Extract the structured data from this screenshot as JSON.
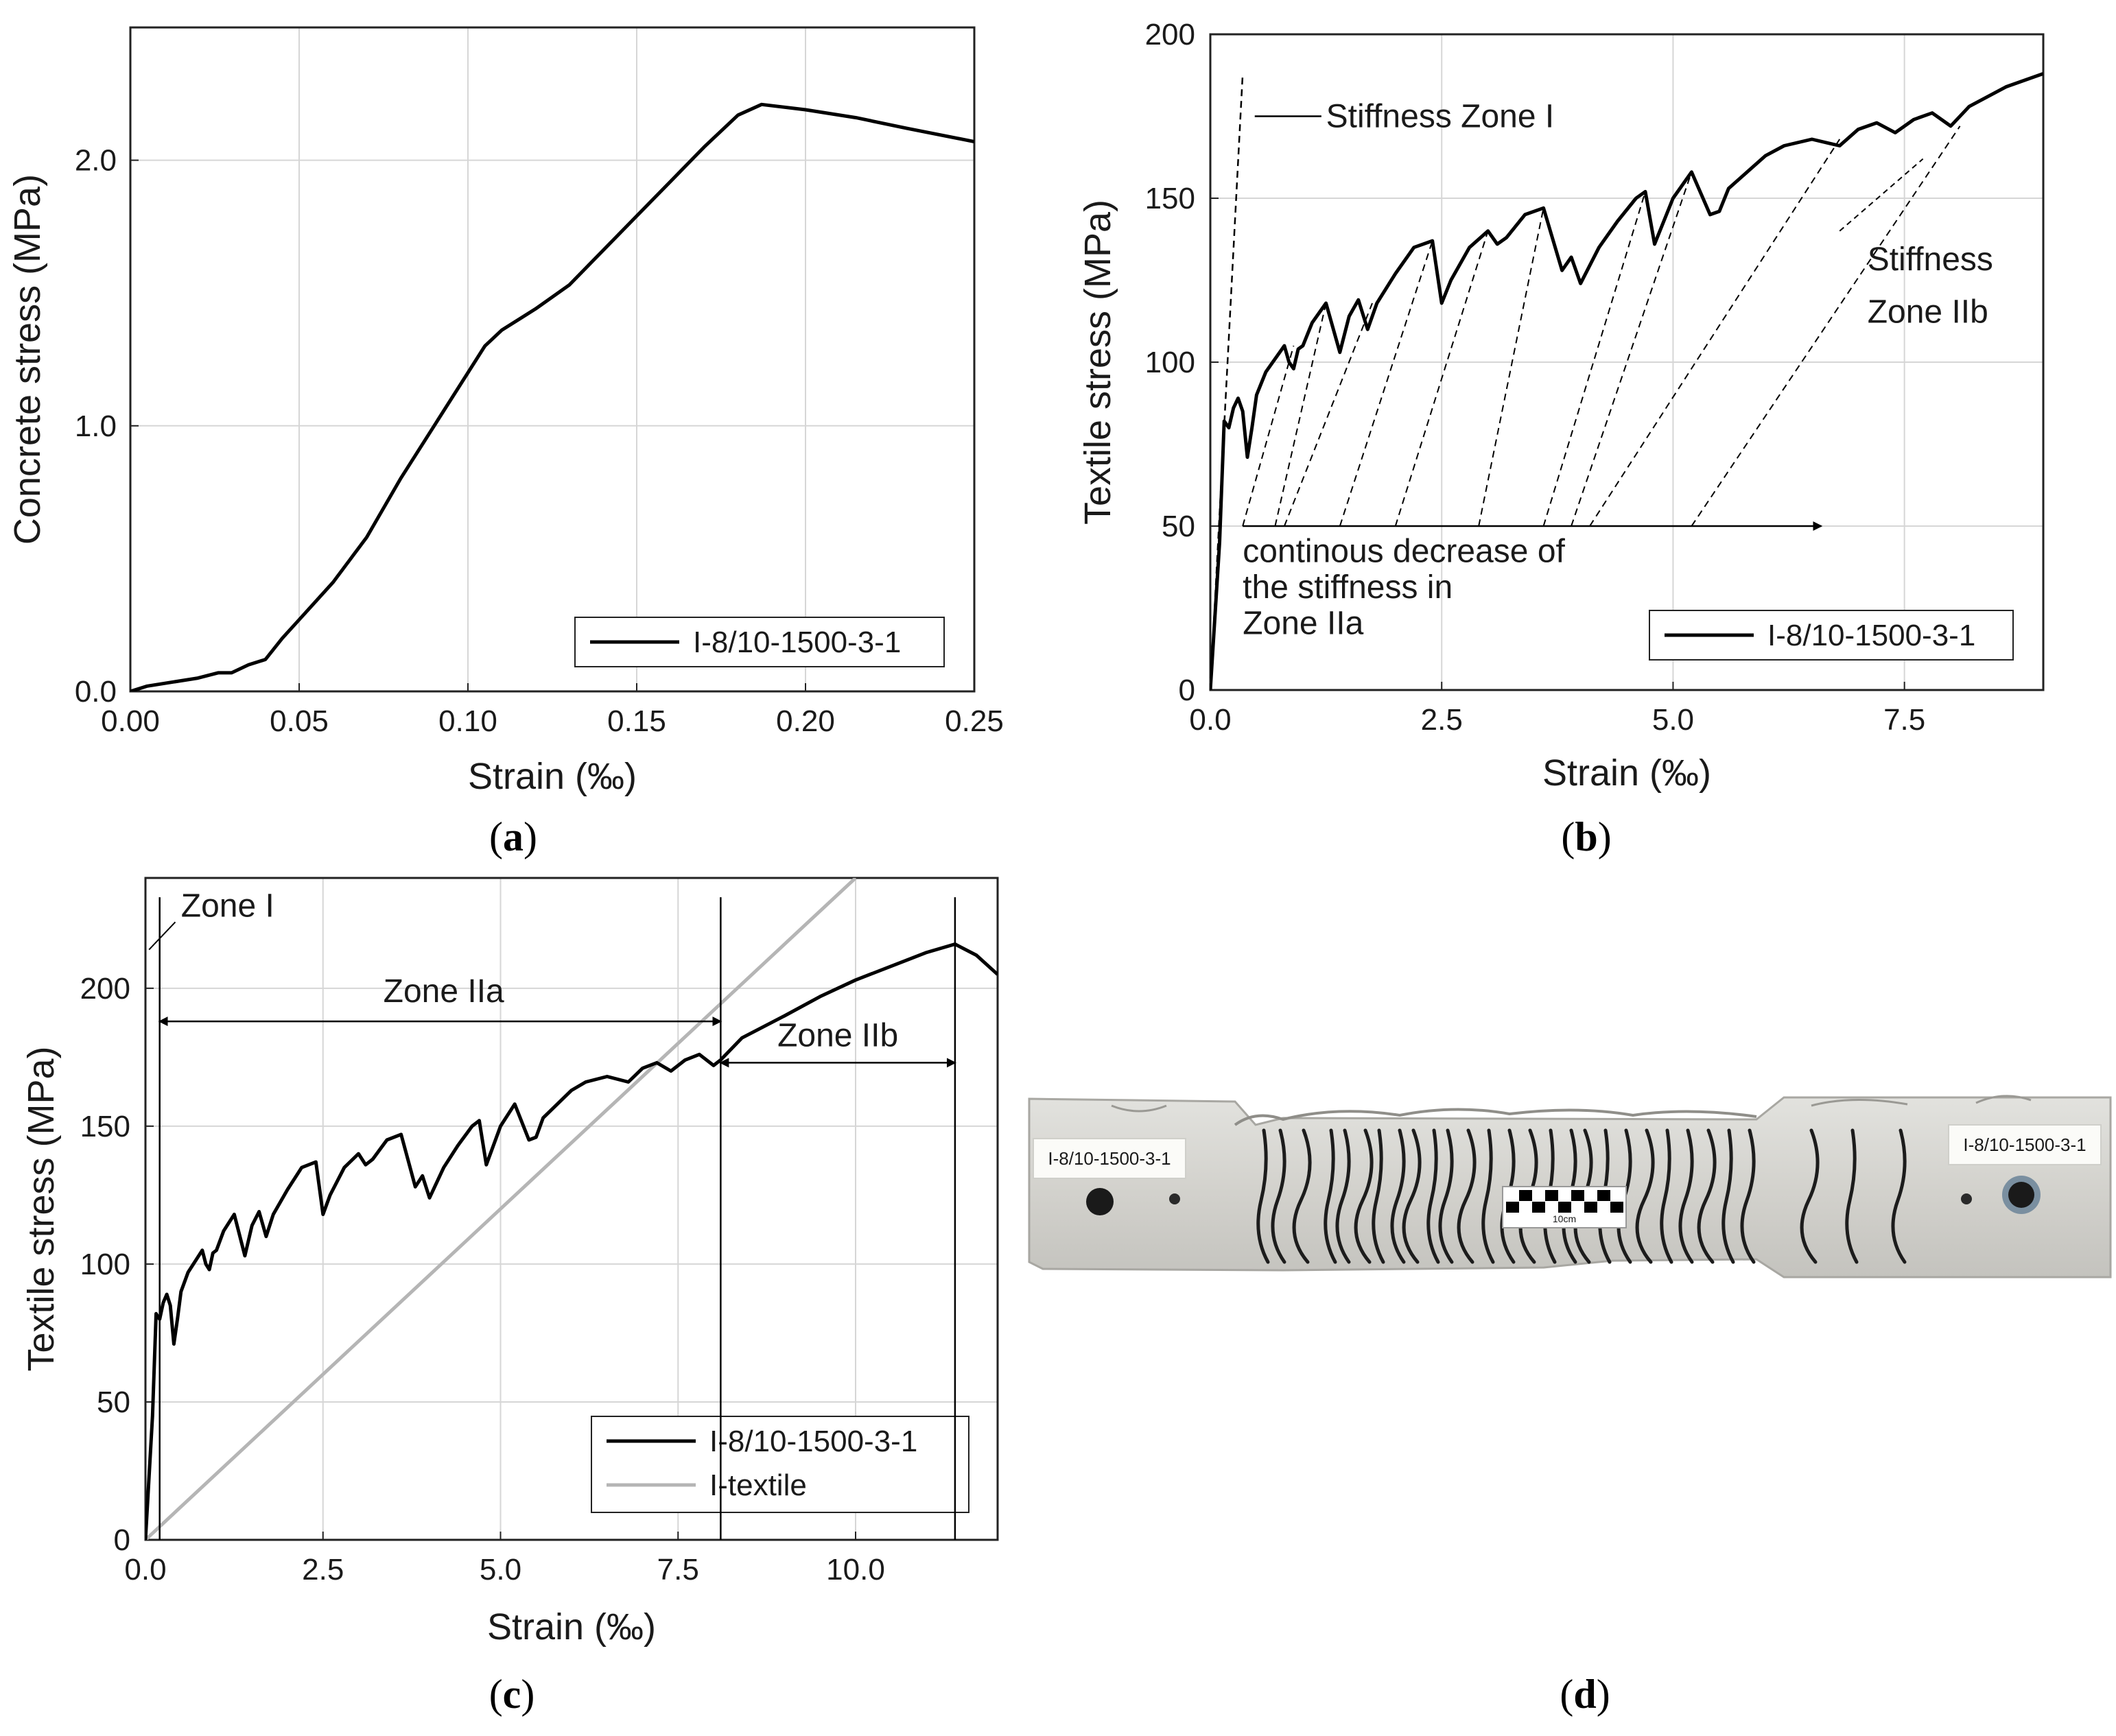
{
  "chart_data": [
    {
      "id": "a",
      "type": "line",
      "caption": "a",
      "xlabel": "Strain (‰)",
      "ylabel": "Concrete stress (MPa)",
      "xlim": [
        0,
        0.25
      ],
      "ylim": [
        0,
        2.5
      ],
      "xticks": [
        0,
        0.05,
        0.1,
        0.15,
        0.2,
        0.25
      ],
      "xtick_labels": [
        "0.00",
        "0.05",
        "0.10",
        "0.15",
        "0.20",
        "0.25"
      ],
      "yticks": [
        0,
        1,
        2
      ],
      "ytick_labels": [
        "0.0",
        "1.0",
        "2.0"
      ],
      "grid": true,
      "legend_position": "bottom-right",
      "series": [
        {
          "name": "I-8/10-1500-3-1",
          "color": "#000000",
          "x": [
            0,
            0.005,
            0.02,
            0.026,
            0.03,
            0.035,
            0.04,
            0.045,
            0.05,
            0.06,
            0.07,
            0.08,
            0.09,
            0.1,
            0.105,
            0.11,
            0.12,
            0.13,
            0.14,
            0.15,
            0.16,
            0.17,
            0.18,
            0.187,
            0.2,
            0.215,
            0.23,
            0.25
          ],
          "y": [
            0.0,
            0.02,
            0.05,
            0.07,
            0.07,
            0.1,
            0.12,
            0.2,
            0.27,
            0.41,
            0.58,
            0.8,
            1.0,
            1.2,
            1.3,
            1.36,
            1.44,
            1.53,
            1.66,
            1.79,
            1.92,
            2.05,
            2.17,
            2.21,
            2.19,
            2.16,
            2.12,
            2.07
          ]
        }
      ]
    },
    {
      "id": "b",
      "type": "line",
      "caption": "b",
      "xlabel": "Strain (‰)",
      "ylabel": "Textile stress (MPa)",
      "xlim": [
        0,
        9
      ],
      "ylim": [
        0,
        200
      ],
      "xticks": [
        0,
        2.5,
        5,
        7.5
      ],
      "xtick_labels": [
        "0.0",
        "2.5",
        "5.0",
        "7.5"
      ],
      "yticks": [
        0,
        50,
        100,
        150,
        200
      ],
      "ytick_labels": [
        "0",
        "50",
        "100",
        "150",
        "200"
      ],
      "grid": true,
      "legend_position": "bottom-right",
      "annotations": {
        "stiffness_zone_i": "Stiffness Zone I",
        "stiffness_zone_iib_line1": "Stiffness",
        "stiffness_zone_iib_line2": "Zone IIb",
        "decrease_line1": "continous decrease of",
        "decrease_line2": "the stiffness in",
        "decrease_line3": "Zone IIa"
      },
      "series": [
        {
          "name": "I-8/10-1500-3-1",
          "color": "#000000",
          "x": [
            0,
            0.1,
            0.15,
            0.2,
            0.25,
            0.3,
            0.35,
            0.4,
            0.45,
            0.5,
            0.6,
            0.8,
            0.85,
            0.9,
            0.95,
            1.0,
            1.1,
            1.25,
            1.4,
            1.5,
            1.6,
            1.7,
            1.8,
            2.0,
            2.2,
            2.4,
            2.5,
            2.6,
            2.8,
            3.0,
            3.1,
            3.2,
            3.4,
            3.6,
            3.8,
            3.9,
            4.0,
            4.2,
            4.4,
            4.6,
            4.7,
            4.8,
            5.0,
            5.2,
            5.4,
            5.5,
            5.6,
            5.8,
            6.0,
            6.2,
            6.5,
            6.8,
            7.0,
            7.2,
            7.4,
            7.6,
            7.8,
            8.0,
            8.2,
            8.6,
            9.0
          ],
          "y": [
            0,
            45,
            82,
            80,
            86,
            89,
            85,
            71,
            80,
            90,
            97,
            105,
            100,
            98,
            104,
            105,
            112,
            118,
            103,
            114,
            119,
            110,
            118,
            127,
            135,
            137,
            118,
            125,
            135,
            140,
            136,
            138,
            145,
            147,
            128,
            132,
            124,
            135,
            143,
            150,
            152,
            136,
            150,
            158,
            145,
            146,
            153,
            158,
            163,
            166,
            168,
            166,
            171,
            173,
            170,
            174,
            176,
            172,
            178,
            184,
            188
          ]
        }
      ]
    },
    {
      "id": "c",
      "type": "line",
      "caption": "c",
      "xlabel": "Strain (‰)",
      "ylabel": "Textile stress (MPa)",
      "xlim": [
        0,
        12
      ],
      "ylim": [
        0,
        240
      ],
      "xticks": [
        0,
        2.5,
        5,
        7.5,
        10
      ],
      "xtick_labels": [
        "0.0",
        "2.5",
        "5.0",
        "7.5",
        "10.0"
      ],
      "yticks": [
        0,
        50,
        100,
        150,
        200
      ],
      "ytick_labels": [
        "0",
        "50",
        "100",
        "150",
        "200"
      ],
      "grid": true,
      "legend_position": "bottom-right",
      "annotations": {
        "zone_i": "Zone I",
        "zone_iia": "Zone IIa",
        "zone_iib": "Zone IIb"
      },
      "series": [
        {
          "name": "I-8/10-1500-3-1",
          "color": "#000000",
          "x": [
            0,
            0.1,
            0.15,
            0.2,
            0.25,
            0.3,
            0.35,
            0.4,
            0.45,
            0.5,
            0.6,
            0.8,
            0.85,
            0.9,
            0.95,
            1.0,
            1.1,
            1.25,
            1.4,
            1.5,
            1.6,
            1.7,
            1.8,
            2.0,
            2.2,
            2.4,
            2.5,
            2.6,
            2.8,
            3.0,
            3.1,
            3.2,
            3.4,
            3.6,
            3.8,
            3.9,
            4.0,
            4.2,
            4.4,
            4.6,
            4.7,
            4.8,
            5.0,
            5.2,
            5.4,
            5.5,
            5.6,
            5.8,
            6.0,
            6.2,
            6.5,
            6.8,
            7.0,
            7.2,
            7.4,
            7.6,
            7.8,
            8.0,
            8.1,
            8.4,
            9.0,
            9.5,
            10.0,
            10.5,
            11.0,
            11.4,
            11.7,
            12.0
          ],
          "y": [
            0,
            45,
            82,
            80,
            86,
            89,
            85,
            71,
            80,
            90,
            97,
            105,
            100,
            98,
            104,
            105,
            112,
            118,
            103,
            114,
            119,
            110,
            118,
            127,
            135,
            137,
            118,
            125,
            135,
            140,
            136,
            138,
            145,
            147,
            128,
            132,
            124,
            135,
            143,
            150,
            152,
            136,
            150,
            158,
            145,
            146,
            153,
            158,
            163,
            166,
            168,
            166,
            171,
            173,
            170,
            174,
            176,
            172,
            174,
            182,
            190,
            197,
            203,
            208,
            213,
            216,
            212,
            205
          ]
        },
        {
          "name": "I-textile",
          "color": "#b5b5b5",
          "x": [
            0,
            10
          ],
          "y": [
            0,
            240
          ]
        }
      ]
    }
  ],
  "panel_d": {
    "caption": "d",
    "label_left": "I-8/10-1500-3-1",
    "label_right": "I-8/10-1500-3-1",
    "scale_label": "10cm"
  }
}
